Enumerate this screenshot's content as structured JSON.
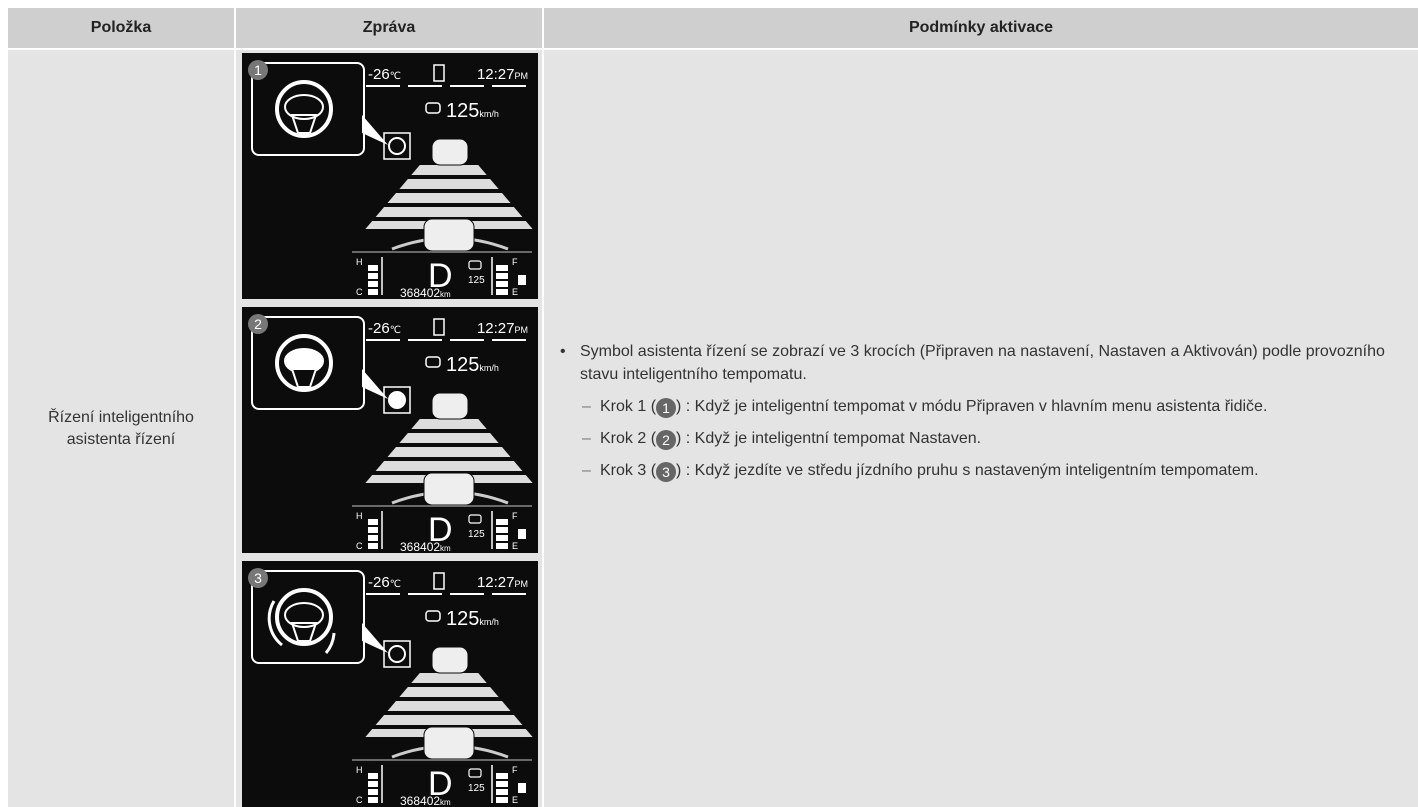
{
  "header": {
    "columns": [
      "Položka",
      "Zpráva",
      "Podmínky aktivace"
    ]
  },
  "table": {
    "rows": [
      {
        "item": "Řízení inteligentního asistenta řízení",
        "messages": [
          {
            "step": "1",
            "temperature": "-26",
            "temperature_unit": "℃",
            "time": "12:27",
            "time_suffix": "PM",
            "speed": "125",
            "speed_unit": "km/h",
            "gear": "D",
            "set_speed": "125",
            "odometer": "368402",
            "odometer_unit": "km",
            "gauge_labels": [
              "H",
              "C",
              "F",
              "E"
            ]
          },
          {
            "step": "2",
            "temperature": "-26",
            "temperature_unit": "℃",
            "time": "12:27",
            "time_suffix": "PM",
            "speed": "125",
            "speed_unit": "km/h",
            "gear": "D",
            "set_speed": "125",
            "odometer": "368402",
            "odometer_unit": "km",
            "gauge_labels": [
              "H",
              "C",
              "F",
              "E"
            ]
          },
          {
            "step": "3",
            "temperature": "-26",
            "temperature_unit": "℃",
            "time": "12:27",
            "time_suffix": "PM",
            "speed": "125",
            "speed_unit": "km/h",
            "gear": "D",
            "set_speed": "125",
            "odometer": "368402",
            "odometer_unit": "km",
            "gauge_labels": [
              "H",
              "C",
              "F",
              "E"
            ]
          }
        ],
        "conditions": {
          "bullet": "Symbol asistenta řízení se zobrazí ve 3 krocích (Připraven na nastavení, Nastaven a Aktivován) podle provozního stavu inteligentního tempomatu.",
          "steps": [
            {
              "label": "Krok 1 (",
              "badge": "1",
              "text": ") : Když je inteligentní tempomat v módu Připraven v hlavním menu asistenta řidiče."
            },
            {
              "label": "Krok 2 (",
              "badge": "2",
              "text": ") : Když je inteligentní tempomat Nastaven."
            },
            {
              "label": "Krok 3 (",
              "badge": "3",
              "text": ") : Když jezdíte ve středu jízdního pruhu s nastaveným inteligentním tempomatem."
            }
          ]
        }
      }
    ]
  }
}
